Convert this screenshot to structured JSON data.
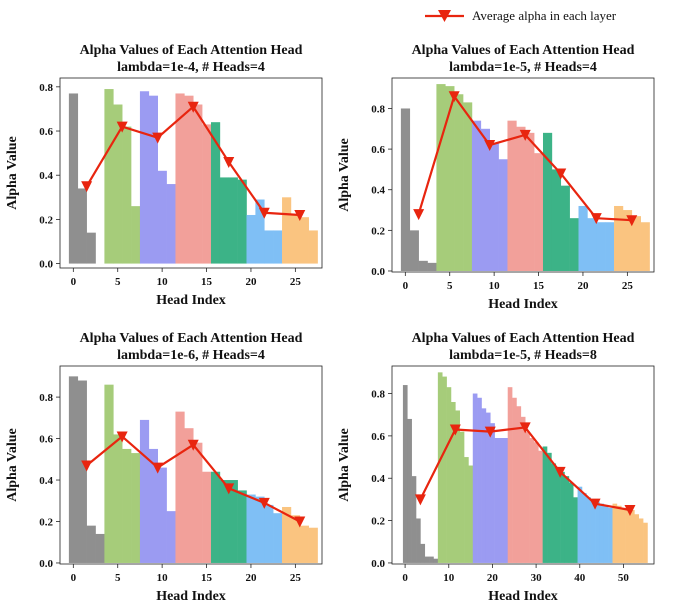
{
  "legend": {
    "label": "Average alpha in each layer",
    "marker_color": "#e8250f"
  },
  "layer_colors": [
    "#8f8f8f",
    "#a6cc7a",
    "#9b9bf2",
    "#f2a09a",
    "#3cb387",
    "#7fbff5",
    "#fac480"
  ],
  "chart_data": [
    {
      "type": "bar",
      "title": "Alpha Values of Each Attention Head",
      "subtitle": "lambda=1e-4, # Heads=4",
      "xlabel": "Head Index",
      "ylabel": "Alpha Value",
      "xlim": [
        -1.5,
        28
      ],
      "ylim": [
        -0.02,
        0.84
      ],
      "xticks": [
        0,
        5,
        10,
        15,
        20,
        25
      ],
      "yticks": [
        0.0,
        0.2,
        0.4,
        0.6,
        0.8
      ],
      "heads_per_layer": 4,
      "values": [
        0.77,
        0.34,
        0.14,
        0.0,
        0.79,
        0.72,
        0.62,
        0.26,
        0.78,
        0.76,
        0.42,
        0.36,
        0.77,
        0.76,
        0.72,
        0.63,
        0.64,
        0.39,
        0.39,
        0.38,
        0.22,
        0.29,
        0.15,
        0.15,
        0.3,
        0.22,
        0.21,
        0.15
      ],
      "line": {
        "x": [
          1.5,
          5.5,
          9.5,
          13.5,
          17.5,
          21.5,
          25.5
        ],
        "y": [
          0.35,
          0.62,
          0.57,
          0.71,
          0.46,
          0.23,
          0.22
        ]
      }
    },
    {
      "type": "bar",
      "title": "Alpha Values of Each Attention Head",
      "subtitle": "lambda=1e-5, # Heads=4",
      "xlabel": "Head Index",
      "ylabel": "Alpha Value",
      "xlim": [
        -1.5,
        28
      ],
      "ylim": [
        -0.005,
        0.95
      ],
      "xticks": [
        0,
        5,
        10,
        15,
        20,
        25
      ],
      "yticks": [
        0.0,
        0.2,
        0.4,
        0.6,
        0.8
      ],
      "heads_per_layer": 4,
      "values": [
        0.8,
        0.2,
        0.05,
        0.04,
        0.92,
        0.91,
        0.87,
        0.83,
        0.74,
        0.7,
        0.63,
        0.55,
        0.74,
        0.71,
        0.68,
        0.58,
        0.68,
        0.5,
        0.42,
        0.26,
        0.32,
        0.26,
        0.24,
        0.24,
        0.32,
        0.3,
        0.27,
        0.24
      ],
      "line": {
        "x": [
          1.5,
          5.5,
          9.5,
          13.5,
          17.5,
          21.5,
          25.5
        ],
        "y": [
          0.28,
          0.86,
          0.62,
          0.67,
          0.48,
          0.26,
          0.25
        ]
      }
    },
    {
      "type": "bar",
      "title": "Alpha Values of Each Attention Head",
      "subtitle": "lambda=1e-6, # Heads=4",
      "xlabel": "Head Index",
      "ylabel": "Alpha Value",
      "xlim": [
        -1.5,
        28
      ],
      "ylim": [
        -0.005,
        0.95
      ],
      "xticks": [
        0,
        5,
        10,
        15,
        20,
        25
      ],
      "yticks": [
        0.0,
        0.2,
        0.4,
        0.6,
        0.8
      ],
      "heads_per_layer": 4,
      "values": [
        0.9,
        0.88,
        0.18,
        0.14,
        0.86,
        0.62,
        0.55,
        0.53,
        0.69,
        0.55,
        0.46,
        0.25,
        0.73,
        0.65,
        0.58,
        0.44,
        0.44,
        0.4,
        0.4,
        0.35,
        0.33,
        0.32,
        0.28,
        0.24,
        0.27,
        0.23,
        0.18,
        0.17
      ],
      "line": {
        "x": [
          1.5,
          5.5,
          9.5,
          13.5,
          17.5,
          21.5,
          25.5
        ],
        "y": [
          0.47,
          0.61,
          0.46,
          0.57,
          0.36,
          0.29,
          0.2
        ]
      }
    },
    {
      "type": "bar",
      "title": "Alpha Values of Each Attention Head",
      "subtitle": "lambda=1e-5, # Heads=8",
      "xlabel": "Head Index",
      "ylabel": "Alpha Value",
      "xlim": [
        -3,
        57
      ],
      "ylim": [
        -0.005,
        0.93
      ],
      "xticks": [
        0,
        10,
        20,
        30,
        40,
        50
      ],
      "yticks": [
        0.0,
        0.2,
        0.4,
        0.6,
        0.8
      ],
      "heads_per_layer": 8,
      "values": [
        0.84,
        0.68,
        0.41,
        0.21,
        0.09,
        0.03,
        0.03,
        0.02,
        0.9,
        0.88,
        0.83,
        0.76,
        0.72,
        0.62,
        0.5,
        0.46,
        0.8,
        0.78,
        0.73,
        0.71,
        0.66,
        0.59,
        0.59,
        0.59,
        0.83,
        0.78,
        0.74,
        0.69,
        0.62,
        0.59,
        0.57,
        0.53,
        0.55,
        0.52,
        0.47,
        0.45,
        0.43,
        0.41,
        0.38,
        0.31,
        0.36,
        0.33,
        0.31,
        0.3,
        0.29,
        0.28,
        0.27,
        0.26,
        0.28,
        0.27,
        0.26,
        0.25,
        0.25,
        0.23,
        0.21,
        0.19
      ],
      "line": {
        "x": [
          3.5,
          11.5,
          19.5,
          27.5,
          35.5,
          43.5,
          51.5
        ],
        "y": [
          0.3,
          0.63,
          0.62,
          0.64,
          0.43,
          0.28,
          0.25
        ]
      }
    }
  ]
}
